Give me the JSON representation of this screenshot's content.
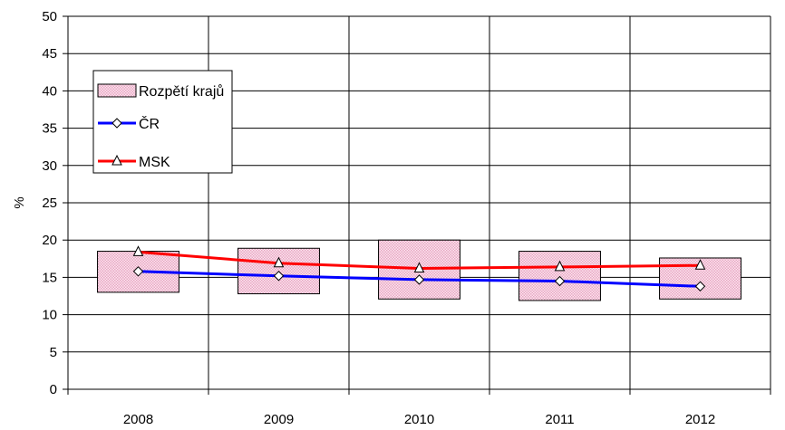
{
  "chart_data": {
    "type": "line",
    "title": "",
    "xlabel": "",
    "ylabel": "%",
    "categories": [
      "2008",
      "2009",
      "2010",
      "2011",
      "2012"
    ],
    "ylim": [
      0,
      50
    ],
    "yticks": [
      "0",
      "5",
      "10",
      "15",
      "20",
      "25",
      "30",
      "35",
      "40",
      "45",
      "50"
    ],
    "grid": true,
    "legend": {
      "placement": "top-left"
    },
    "range": {
      "name": "Rozpětí krajů",
      "color": "#f2c6dc",
      "low": [
        13.0,
        12.8,
        12.1,
        11.9,
        12.1
      ],
      "high": [
        18.5,
        18.9,
        20.0,
        18.5,
        17.6
      ]
    },
    "series": [
      {
        "name": "ČR",
        "color": "#0000ff",
        "marker": "diamond",
        "values": [
          15.8,
          15.2,
          14.7,
          14.5,
          13.8
        ]
      },
      {
        "name": "MSK",
        "color": "#ff0000",
        "marker": "triangle",
        "values": [
          18.4,
          16.9,
          16.2,
          16.4,
          16.6
        ]
      }
    ]
  }
}
